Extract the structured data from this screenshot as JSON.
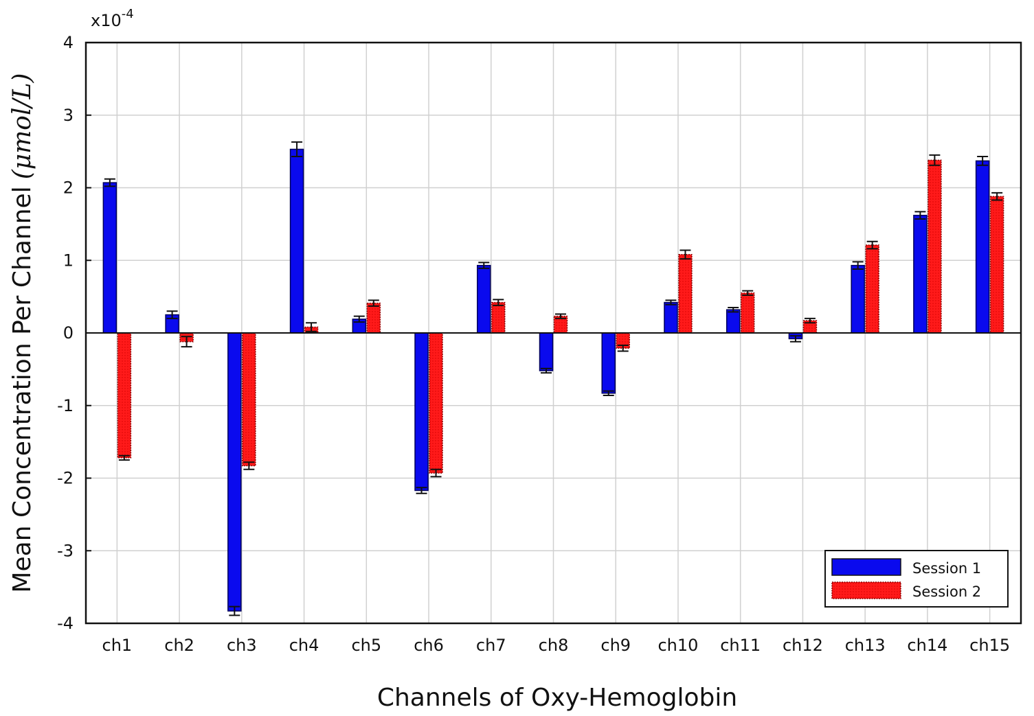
{
  "chart_data": {
    "type": "bar",
    "title": "",
    "xlabel": "Channels of Oxy-Hemoglobin",
    "ylabel_text": "Mean Concentration Per Channel",
    "ylabel_unit": "(μmol/L)",
    "y_multiplier": "x10",
    "y_multiplier_exp": "-4",
    "ylim": [
      -4,
      4
    ],
    "yticks": [
      -4,
      -3,
      -2,
      -1,
      0,
      1,
      2,
      3,
      4
    ],
    "grid": true,
    "legend_position": "bottom-right",
    "categories": [
      "ch1",
      "ch2",
      "ch3",
      "ch4",
      "ch5",
      "ch6",
      "ch7",
      "ch8",
      "ch9",
      "ch10",
      "ch11",
      "ch12",
      "ch13",
      "ch14",
      "ch15"
    ],
    "series": [
      {
        "name": "Session 1",
        "color": "#0a0aee",
        "values": [
          2.07,
          0.25,
          -3.83,
          2.53,
          0.19,
          -2.17,
          0.93,
          -0.52,
          -0.83,
          0.42,
          0.32,
          -0.08,
          0.93,
          1.62,
          2.37
        ],
        "errors": [
          0.05,
          0.05,
          0.06,
          0.1,
          0.04,
          0.04,
          0.04,
          0.03,
          0.03,
          0.03,
          0.03,
          0.04,
          0.05,
          0.05,
          0.06
        ]
      },
      {
        "name": "Session 2",
        "color": "#ff1a1a",
        "values": [
          -1.72,
          -0.12,
          -1.83,
          0.08,
          0.41,
          -1.93,
          0.42,
          0.23,
          -0.21,
          1.08,
          0.55,
          0.17,
          1.21,
          2.38,
          1.88
        ],
        "errors": [
          0.03,
          0.07,
          0.05,
          0.06,
          0.04,
          0.05,
          0.04,
          0.03,
          0.04,
          0.06,
          0.03,
          0.03,
          0.05,
          0.07,
          0.05
        ]
      }
    ]
  }
}
